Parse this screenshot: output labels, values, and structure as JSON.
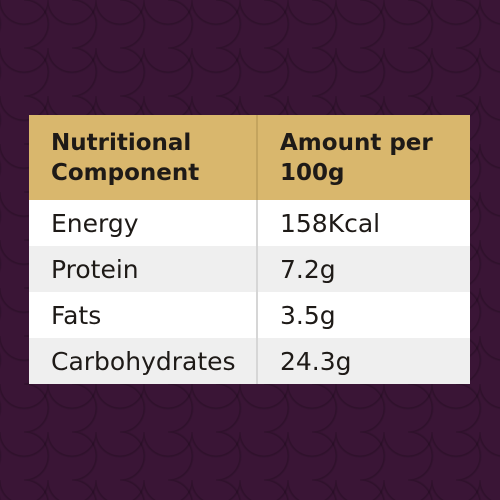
{
  "table": {
    "headers": [
      "Nutritional Component",
      "Amount per 100g"
    ],
    "rows": [
      [
        "Energy",
        "158Kcal"
      ],
      [
        "Protein",
        "7.2g"
      ],
      [
        "Fats",
        "3.5g"
      ],
      [
        "Carbohydrates",
        "24.3g"
      ]
    ]
  },
  "colors": {
    "background": "#3a1536",
    "header": "#d9b76d",
    "row_alt": "#efefef",
    "row": "#ffffff",
    "text": "#1e1a17"
  }
}
